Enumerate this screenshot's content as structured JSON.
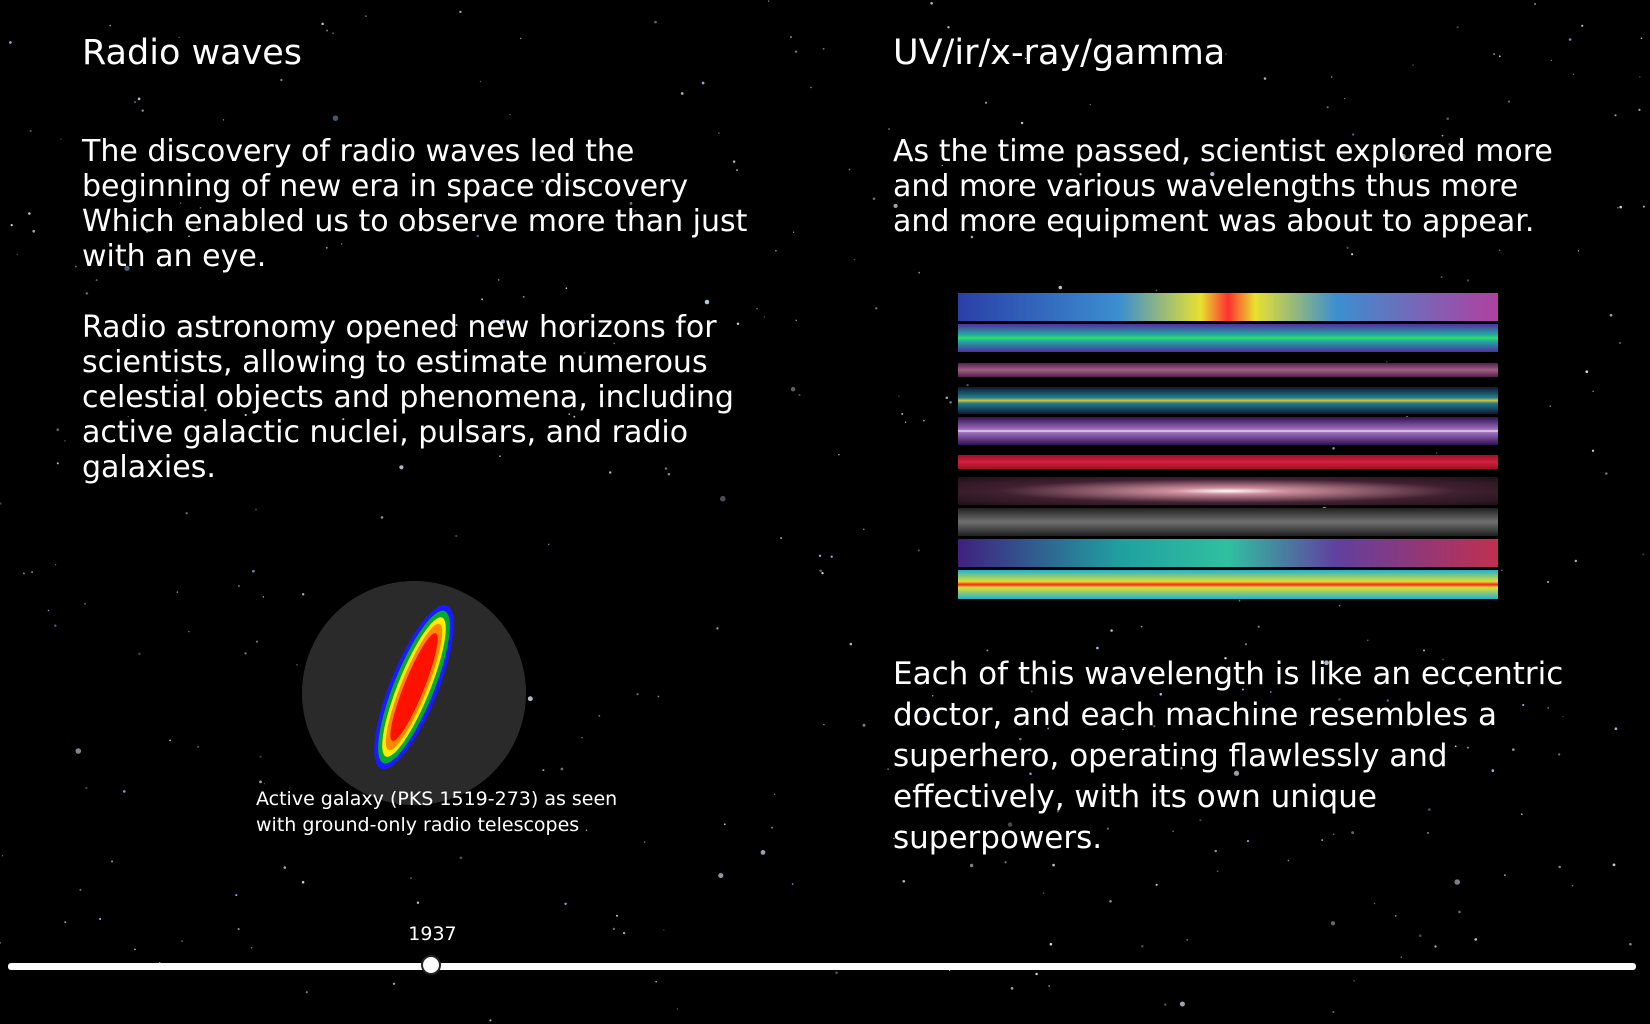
{
  "left": {
    "title": "Radio waves",
    "paragraphs": [
      "The discovery of radio waves led the beginning of new era in space discovery Which enabled us to observe more than just with an eye.",
      "Radio astronomy opened new horizons for scientists, allowing to estimate numerous celestial objects and phenomena, including active galactic nuclei, pulsars, and radio galaxies."
    ],
    "caption": "Active galaxy (PKS 1519-273) as seen with ground-only radio telescopes"
  },
  "right": {
    "title": "UV/ir/x-ray/gamma",
    "paragraphs": [
      "As the time passed, scientist explored more and more various wavelengths thus more and more equipment was about to appear.",
      "Each of this wavelength is like an eccentric doctor, and each machine resembles a superhero, operating flawlessly and effectively, with its own unique superpowers."
    ]
  },
  "timeline": {
    "year_label": "1937",
    "position_fraction": 0.26
  },
  "colors": {
    "background": "#000000",
    "text": "#ffffff",
    "galaxy_disc": "#2a2a2a",
    "galaxy_bands": [
      "#1a1aff",
      "#00aa33",
      "#ffee00",
      "#ff8800",
      "#ff1100"
    ]
  }
}
